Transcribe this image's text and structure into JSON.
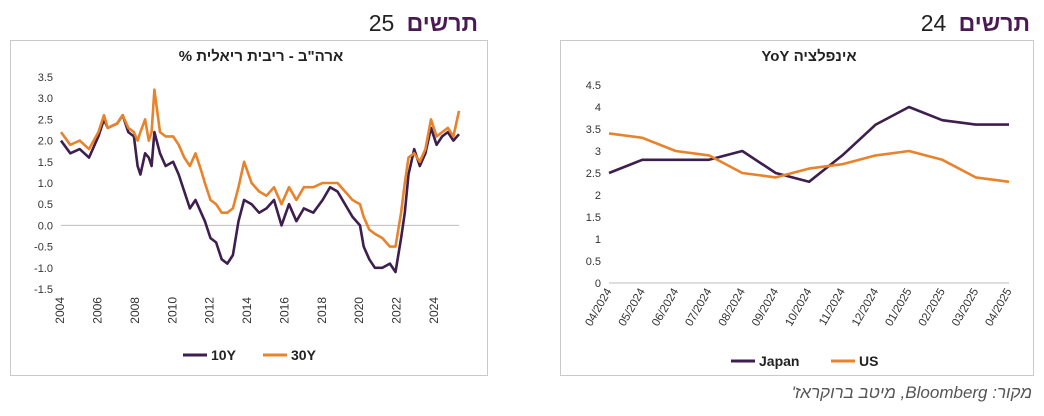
{
  "left_caption": {
    "word": "תרשים",
    "number": "25"
  },
  "right_caption": {
    "word": "תרשים",
    "number": "24"
  },
  "source_text": "מקור: Bloomberg, מיטב ברוקראז'",
  "colors": {
    "series_10y": "#3d1e4d",
    "series_30y": "#e8822b",
    "caption": "#4a1a55"
  },
  "chart_data": [
    {
      "type": "line",
      "title": "ארה\"ב - ריבית ריאלית %",
      "ylim": [
        -1.5,
        3.5
      ],
      "yticks": [
        "3.5",
        "3.0",
        "2.5",
        "2.0",
        "1.5",
        "1.0",
        "0.5",
        "0.0",
        "-0.5",
        "-1.0",
        "-1.5"
      ],
      "xticks": [
        "2004",
        "2006",
        "2008",
        "2010",
        "2012",
        "2014",
        "2016",
        "2018",
        "2020",
        "2022",
        "2024"
      ],
      "grid": false,
      "legend": "bottom",
      "series": [
        {
          "name": "10Y",
          "color": "#3d1e4d",
          "x": [
            2004.0,
            2004.5,
            2005.0,
            2005.5,
            2006.0,
            2006.3,
            2006.5,
            2007.0,
            2007.3,
            2007.6,
            2007.9,
            2008.1,
            2008.25,
            2008.5,
            2008.7,
            2008.85,
            2009.0,
            2009.3,
            2009.6,
            2010.0,
            2010.3,
            2010.6,
            2010.9,
            2011.2,
            2011.5,
            2011.7,
            2012.0,
            2012.3,
            2012.6,
            2012.9,
            2013.2,
            2013.5,
            2013.8,
            2014.2,
            2014.6,
            2015.0,
            2015.4,
            2015.8,
            2016.2,
            2016.6,
            2017.0,
            2017.5,
            2018.0,
            2018.4,
            2018.8,
            2019.2,
            2019.6,
            2020.0,
            2020.2,
            2020.5,
            2020.8,
            2021.2,
            2021.6,
            2021.9,
            2022.2,
            2022.4,
            2022.6,
            2022.9,
            2023.2,
            2023.5,
            2023.8,
            2024.1,
            2024.4,
            2024.7,
            2025.0,
            2025.3
          ],
          "values": [
            2.0,
            1.7,
            1.8,
            1.6,
            2.1,
            2.5,
            2.3,
            2.4,
            2.6,
            2.2,
            2.1,
            1.4,
            1.2,
            1.7,
            1.6,
            1.4,
            2.2,
            1.7,
            1.4,
            1.5,
            1.2,
            0.8,
            0.4,
            0.6,
            0.3,
            0.1,
            -0.3,
            -0.4,
            -0.8,
            -0.9,
            -0.7,
            0.1,
            0.6,
            0.5,
            0.3,
            0.4,
            0.6,
            0.0,
            0.5,
            0.1,
            0.4,
            0.3,
            0.6,
            0.9,
            0.8,
            0.5,
            0.2,
            0.0,
            -0.5,
            -0.8,
            -1.0,
            -1.0,
            -0.9,
            -1.1,
            -0.3,
            0.3,
            1.2,
            1.8,
            1.4,
            1.7,
            2.3,
            1.9,
            2.1,
            2.2,
            2.0,
            2.15
          ]
        },
        {
          "name": "30Y",
          "color": "#e8822b",
          "x": [
            2004.0,
            2004.5,
            2005.0,
            2005.5,
            2006.0,
            2006.3,
            2006.5,
            2007.0,
            2007.3,
            2007.6,
            2007.9,
            2008.1,
            2008.25,
            2008.5,
            2008.7,
            2008.85,
            2009.0,
            2009.3,
            2009.6,
            2010.0,
            2010.3,
            2010.6,
            2010.9,
            2011.2,
            2011.5,
            2011.7,
            2012.0,
            2012.3,
            2012.6,
            2012.9,
            2013.2,
            2013.5,
            2013.8,
            2014.2,
            2014.6,
            2015.0,
            2015.4,
            2015.8,
            2016.2,
            2016.6,
            2017.0,
            2017.5,
            2018.0,
            2018.4,
            2018.8,
            2019.2,
            2019.6,
            2020.0,
            2020.2,
            2020.5,
            2020.8,
            2021.2,
            2021.6,
            2021.9,
            2022.2,
            2022.4,
            2022.6,
            2022.9,
            2023.2,
            2023.5,
            2023.8,
            2024.1,
            2024.4,
            2024.7,
            2025.0,
            2025.3
          ],
          "values": [
            2.2,
            1.9,
            2.0,
            1.8,
            2.2,
            2.6,
            2.3,
            2.4,
            2.6,
            2.3,
            2.2,
            2.0,
            2.2,
            2.5,
            2.0,
            2.2,
            3.2,
            2.2,
            2.1,
            2.1,
            1.9,
            1.6,
            1.4,
            1.7,
            1.3,
            1.0,
            0.6,
            0.5,
            0.3,
            0.3,
            0.4,
            0.9,
            1.5,
            1.0,
            0.8,
            0.7,
            0.9,
            0.5,
            0.9,
            0.6,
            0.9,
            0.9,
            1.0,
            1.0,
            1.0,
            0.8,
            0.6,
            0.5,
            0.2,
            -0.1,
            -0.2,
            -0.3,
            -0.5,
            -0.5,
            0.3,
            1.0,
            1.6,
            1.7,
            1.5,
            1.8,
            2.5,
            2.1,
            2.2,
            2.3,
            2.1,
            2.7
          ]
        }
      ]
    },
    {
      "type": "line",
      "title": "אינפלציה YoY",
      "ylim": [
        0,
        4.5
      ],
      "yticks": [
        "4.5",
        "4",
        "3.5",
        "3",
        "2.5",
        "2",
        "1.5",
        "1",
        "0.5",
        "0"
      ],
      "categories": [
        "04/2024",
        "05/2024",
        "06/2024",
        "07/2024",
        "08/2024",
        "09/2024",
        "10/2024",
        "11/2024",
        "12/2024",
        "01/2025",
        "02/2025",
        "03/2025",
        "04/2025"
      ],
      "grid": false,
      "legend": "bottom",
      "series": [
        {
          "name": "Japan",
          "color": "#3d1e4d",
          "values": [
            2.5,
            2.8,
            2.8,
            2.8,
            3.0,
            2.5,
            2.3,
            2.9,
            3.6,
            4.0,
            3.7,
            3.6,
            3.6
          ]
        },
        {
          "name": "US",
          "color": "#e8822b",
          "values": [
            3.4,
            3.3,
            3.0,
            2.9,
            2.5,
            2.4,
            2.6,
            2.7,
            2.9,
            3.0,
            2.8,
            2.4,
            2.3
          ]
        }
      ]
    }
  ]
}
